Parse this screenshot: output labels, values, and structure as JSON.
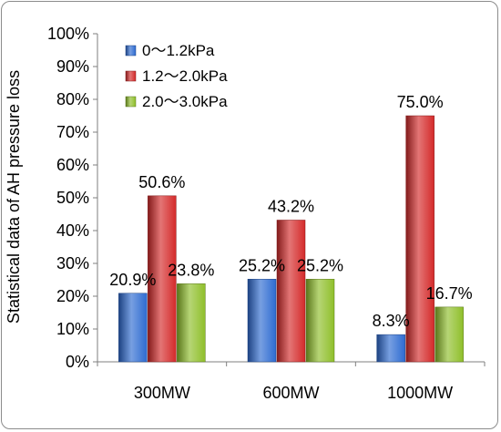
{
  "chart_data": {
    "type": "bar",
    "title": "",
    "xlabel": "",
    "ylabel": "Statistical data of AH pressure loss",
    "ylim": [
      0,
      100
    ],
    "yticks": [
      "0%",
      "10%",
      "20%",
      "30%",
      "40%",
      "50%",
      "60%",
      "70%",
      "80%",
      "90%",
      "100%"
    ],
    "categories": [
      "300MW",
      "600MW",
      "1000MW"
    ],
    "series": [
      {
        "name": "0～1.2kPa",
        "values": [
          20.9,
          25.2,
          8.3
        ],
        "labels": [
          "20.9%",
          "25.2%",
          "8.3%"
        ],
        "color": "#2e6bd1"
      },
      {
        "name": "1.2～2.0kPa",
        "values": [
          50.6,
          43.2,
          75.0
        ],
        "labels": [
          "50.6%",
          "43.2%",
          "75.0%"
        ],
        "color": "#d42a2a"
      },
      {
        "name": "2.0～3.0kPa",
        "values": [
          23.8,
          25.2,
          16.7
        ],
        "labels": [
          "23.8%",
          "25.2%",
          "16.7%"
        ],
        "color": "#8fbf2a"
      }
    ],
    "legend_position": "top-left",
    "grid": false
  }
}
